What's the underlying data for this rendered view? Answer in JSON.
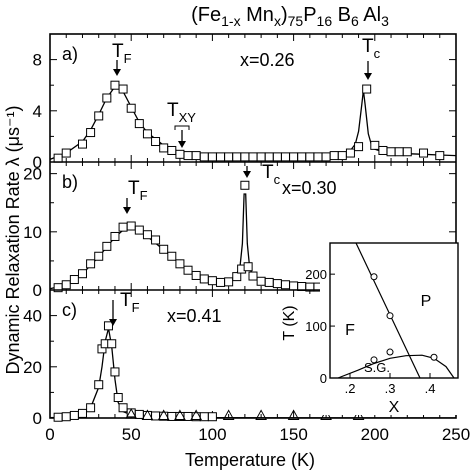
{
  "figure": {
    "title": "(Fe1-x Mnx)75 P16 B6 Al3",
    "xlabel": "Temperature (K)",
    "ylabel": "Dynamic Relaxation Rate λ (μs⁻¹)"
  },
  "chart_data": [
    {
      "type": "scatter",
      "panel": "a)",
      "x_param": "x=0.26",
      "xlim": [
        0,
        250
      ],
      "ylim": [
        0,
        10
      ],
      "yticks": [
        0,
        4,
        8
      ],
      "annotations": [
        "T_F",
        "T_XY",
        "T_c"
      ],
      "series": [
        {
          "x": [
            5,
            10,
            20,
            25,
            30,
            35,
            40,
            45,
            50,
            55,
            60,
            65,
            70,
            75,
            80,
            85,
            90,
            95,
            100,
            105,
            110,
            115,
            120,
            125,
            130,
            135,
            140,
            145,
            150,
            155,
            160,
            165,
            170,
            175,
            180,
            185,
            190,
            195,
            200,
            205,
            210,
            215,
            220,
            230,
            240
          ],
          "y": [
            0.3,
            0.7,
            1.4,
            2.3,
            3.6,
            5.0,
            6.0,
            5.7,
            4.2,
            3.0,
            2.2,
            1.6,
            1.1,
            0.9,
            0.6,
            0.5,
            0.5,
            0.4,
            0.4,
            0.4,
            0.4,
            0.4,
            0.4,
            0.4,
            0.4,
            0.4,
            0.4,
            0.4,
            0.4,
            0.4,
            0.4,
            0.4,
            0.4,
            0.5,
            0.5,
            0.7,
            1.2,
            5.7,
            1.3,
            0.9,
            0.8,
            0.8,
            0.8,
            0.7,
            0.5
          ]
        }
      ],
      "fit_curve": {
        "x": [
          0,
          10,
          20,
          25,
          30,
          35,
          40,
          45,
          50,
          55,
          60,
          70,
          80,
          90,
          100,
          120,
          140,
          160,
          170,
          180,
          185,
          188,
          190,
          192,
          193,
          194,
          196,
          198,
          200,
          205,
          210,
          220,
          230,
          240,
          250
        ],
        "y": [
          0.2,
          0.7,
          1.6,
          2.5,
          3.7,
          5.0,
          5.9,
          5.5,
          4.3,
          3.1,
          2.3,
          1.3,
          0.8,
          0.5,
          0.4,
          0.35,
          0.35,
          0.4,
          0.45,
          0.6,
          0.9,
          1.4,
          2.4,
          4.5,
          5.6,
          4.5,
          2.2,
          1.3,
          1.0,
          0.8,
          0.7,
          0.65,
          0.6,
          0.55,
          0.5
        ]
      }
    },
    {
      "type": "scatter",
      "panel": "b)",
      "x_param": "x=0.30",
      "xlim": [
        0,
        250
      ],
      "ylim": [
        0,
        22
      ],
      "yticks": [
        0,
        10,
        20
      ],
      "annotations": [
        "T_F",
        "T_c"
      ],
      "series": [
        {
          "x": [
            5,
            10,
            15,
            20,
            25,
            30,
            35,
            40,
            45,
            50,
            55,
            60,
            65,
            70,
            75,
            80,
            85,
            90,
            95,
            100,
            105,
            110,
            115,
            118,
            120,
            122,
            125,
            130,
            135,
            140,
            145,
            150,
            155,
            160,
            165,
            170,
            175
          ],
          "y": [
            0.4,
            0.9,
            1.8,
            2.8,
            4.5,
            5.8,
            7.5,
            9.2,
            10.8,
            11.0,
            10.3,
            9.5,
            8.6,
            7.0,
            5.8,
            4.5,
            3.4,
            2.5,
            1.9,
            1.6,
            1.3,
            1.4,
            2.3,
            3.6,
            18.0,
            4.0,
            2.4,
            1.5,
            1.3,
            1.1,
            0.9,
            0.7,
            0.6,
            0.5,
            0.5,
            0.4,
            0.4
          ]
        }
      ],
      "fit_curve": {
        "x": [
          0,
          10,
          20,
          30,
          40,
          45,
          50,
          55,
          60,
          70,
          80,
          90,
          100,
          110,
          114,
          117,
          118.5,
          119.5,
          120.5,
          121.5,
          123,
          126,
          130,
          140,
          150,
          160,
          170,
          180,
          200,
          230,
          250
        ],
        "y": [
          0.2,
          0.9,
          2.8,
          5.7,
          9.1,
          10.3,
          10.6,
          10.1,
          9.2,
          6.9,
          4.5,
          2.6,
          1.6,
          1.4,
          2.2,
          4.0,
          8.0,
          16.5,
          16.5,
          8.0,
          3.6,
          2.2,
          1.5,
          1.1,
          0.8,
          0.6,
          0.5,
          0.4,
          0.3,
          0.2,
          0.2
        ]
      }
    },
    {
      "type": "scatter",
      "panel": "c)",
      "x_param": "x=0.41",
      "xlim": [
        0,
        250
      ],
      "ylim": [
        0,
        50
      ],
      "yticks": [
        0,
        20,
        40
      ],
      "annotations": [
        "T_F"
      ],
      "series": [
        {
          "name": "square",
          "x": [
            5,
            10,
            15,
            20,
            25,
            30,
            32,
            34,
            36,
            38,
            40,
            42,
            45,
            50,
            55,
            60,
            65,
            70,
            75,
            80,
            85,
            90,
            95,
            100
          ],
          "y": [
            0.3,
            0.5,
            1.0,
            1.8,
            4.0,
            13.0,
            27.0,
            29.0,
            36.0,
            29.0,
            18.0,
            8.0,
            4.0,
            2.0,
            1.4,
            1.0,
            0.8,
            0.7,
            0.6,
            0.6,
            0.6,
            0.5,
            0.5,
            0.5
          ]
        },
        {
          "name": "triangle",
          "x": [
            50,
            60,
            70,
            80,
            90,
            110,
            130,
            150,
            170,
            190
          ],
          "y": [
            1.5,
            1.0,
            1.0,
            1.0,
            1.0,
            1.0,
            1.0,
            1.0,
            1.0,
            1.0
          ]
        }
      ],
      "fit_curve": {
        "x": [
          0,
          10,
          20,
          25,
          30,
          32,
          34,
          36,
          38,
          40,
          42,
          45,
          50,
          60,
          70,
          80,
          100,
          250
        ],
        "y": [
          0.1,
          0.3,
          1.5,
          4.0,
          12.0,
          20.0,
          30.0,
          35.0,
          28.0,
          15.0,
          6.0,
          2.5,
          1.2,
          0.6,
          0.3,
          0.2,
          0.1,
          0.05
        ]
      }
    },
    {
      "type": "scatter",
      "panel": "inset",
      "xlabel": "X",
      "ylabel": "T (K)",
      "xlim": [
        0.15,
        0.47
      ],
      "ylim": [
        0,
        260
      ],
      "xticks": [
        0.2,
        0.3,
        0.4
      ],
      "xtick_labels": [
        ".2",
        ".3",
        ".4"
      ],
      "yticks": [
        0,
        100,
        200
      ],
      "region_labels": [
        "F",
        "P",
        "S.G."
      ],
      "points": {
        "x": [
          0.26,
          0.3,
          0.3,
          0.26,
          0.41
        ],
        "y": [
          195,
          120,
          50,
          35,
          40
        ]
      },
      "fm_boundary": {
        "x": [
          0.215,
          0.375
        ],
        "y": [
          260,
          0
        ]
      },
      "sg_boundary": {
        "x": [
          0.17,
          0.22,
          0.26,
          0.3,
          0.34,
          0.38,
          0.41,
          0.44,
          0.46
        ],
        "y": [
          0,
          15,
          28,
          38,
          43,
          44,
          38,
          22,
          0
        ]
      }
    }
  ]
}
